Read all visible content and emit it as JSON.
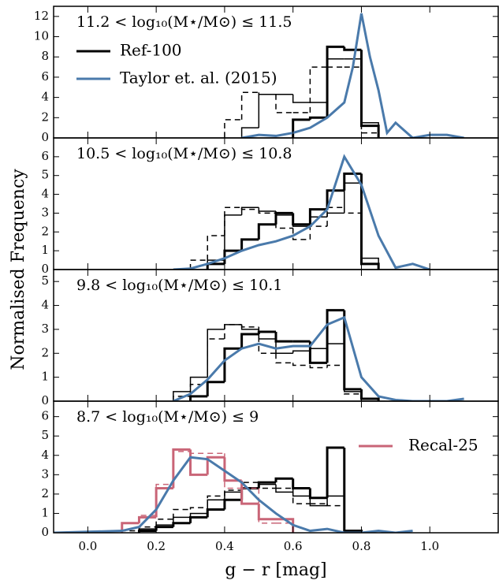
{
  "ylabel": "Normalised Frequency",
  "chart_data": [
    {
      "type": "histogram",
      "title": "11.2 < log₁₀(M⋆/M⊙) ≤ 11.5",
      "xlim": [
        -0.1,
        1.2
      ],
      "xticks": [
        {
          "value": 0,
          "label": "0.0"
        },
        0.2,
        0.4,
        0.6,
        0.8,
        {
          "value": 1,
          "label": "1.0"
        }
      ],
      "ylim": [
        0,
        13
      ],
      "yticks": [
        0,
        2,
        4,
        6,
        8,
        10,
        12
      ],
      "legend": "upper left",
      "series": [
        {
          "name": "Ref-100",
          "type": "step",
          "color": "#000000",
          "linewidth": 3,
          "dashed": false,
          "bins": [
            0.6,
            0.65,
            0.7,
            0.75,
            0.8,
            0.85
          ],
          "values": [
            1.8,
            2.0,
            9.0,
            8.7,
            1.2
          ]
        },
        {
          "type": "step",
          "color": "#000000",
          "linewidth": 1.5,
          "dashed": false,
          "bins": [
            0.45,
            0.5,
            0.55,
            0.6,
            0.65,
            0.7,
            0.75,
            0.8,
            0.85
          ],
          "values": [
            1.0,
            4.3,
            4.3,
            3.5,
            3.5,
            7.8,
            7.8,
            1.5
          ]
        },
        {
          "type": "step",
          "color": "#000000",
          "linewidth": 1.5,
          "dashed": true,
          "bins": [
            0.4,
            0.45,
            0.5,
            0.55,
            0.6,
            0.65,
            0.7,
            0.75,
            0.8,
            0.85
          ],
          "values": [
            1.8,
            4.5,
            4.3,
            2.5,
            2.5,
            7.0,
            7.0,
            7.0,
            0.5
          ]
        },
        {
          "name": "Taylor et. al. (2015)",
          "type": "line",
          "color": "#4a7aab",
          "linewidth": 3,
          "dashed": false,
          "x": [
            0.45,
            0.5,
            0.55,
            0.6,
            0.65,
            0.7,
            0.75,
            0.775,
            0.8,
            0.825,
            0.85,
            0.875,
            0.9,
            0.95,
            1.0,
            1.05,
            1.1
          ],
          "values": [
            0,
            0.3,
            0.2,
            0.5,
            1.0,
            2.0,
            3.5,
            7.0,
            12.3,
            8.0,
            4.7,
            0.5,
            1.5,
            0,
            0.3,
            0.3,
            0
          ]
        }
      ]
    },
    {
      "type": "histogram",
      "title": "10.5 < log₁₀(M⋆/M⊙) ≤ 10.8",
      "xlim": [
        -0.1,
        1.2
      ],
      "xticks": [
        {
          "value": 0,
          "label": "0.0"
        },
        0.2,
        0.4,
        0.6,
        0.8,
        {
          "value": 1,
          "label": "1.0"
        }
      ],
      "ylim": [
        0,
        7
      ],
      "yticks": [
        0,
        1,
        2,
        3,
        4,
        5,
        6
      ],
      "series": [
        {
          "type": "step",
          "color": "#000000",
          "linewidth": 3,
          "dashed": false,
          "bins": [
            0.35,
            0.4,
            0.45,
            0.5,
            0.55,
            0.6,
            0.65,
            0.7,
            0.75,
            0.8,
            0.85
          ],
          "values": [
            0.3,
            1.0,
            1.6,
            2.4,
            3.0,
            2.4,
            3.2,
            4.2,
            5.1,
            0.3
          ]
        },
        {
          "type": "step",
          "color": "#000000",
          "linewidth": 1.5,
          "dashed": false,
          "bins": [
            0.35,
            0.4,
            0.45,
            0.5,
            0.55,
            0.6,
            0.65,
            0.7,
            0.75,
            0.8,
            0.85
          ],
          "values": [
            0.5,
            2.9,
            3.3,
            3.1,
            2.9,
            2.3,
            2.8,
            3.0,
            4.6,
            0.6
          ]
        },
        {
          "type": "step",
          "color": "#000000",
          "linewidth": 1.5,
          "dashed": true,
          "bins": [
            0.3,
            0.35,
            0.4,
            0.45,
            0.5,
            0.55,
            0.6,
            0.65,
            0.7,
            0.75,
            0.8,
            0.85
          ],
          "values": [
            0.5,
            1.8,
            3.3,
            3.2,
            3.0,
            2.2,
            1.6,
            2.3,
            3.3,
            3.0,
            0.3
          ]
        },
        {
          "type": "line",
          "color": "#4a7aab",
          "linewidth": 3,
          "dashed": false,
          "x": [
            0.25,
            0.3,
            0.35,
            0.4,
            0.45,
            0.5,
            0.55,
            0.6,
            0.65,
            0.7,
            0.75,
            0.8,
            0.85,
            0.9,
            0.95,
            1.0
          ],
          "values": [
            0,
            0.05,
            0.3,
            0.6,
            1.0,
            1.3,
            1.5,
            1.8,
            2.3,
            3.2,
            6.0,
            4.5,
            1.8,
            0.1,
            0.3,
            0
          ]
        }
      ]
    },
    {
      "type": "histogram",
      "title": "9.8 < log₁₀(M⋆/M⊙) ≤ 10.1",
      "xlim": [
        -0.1,
        1.2
      ],
      "xticks": [
        {
          "value": 0,
          "label": "0.0"
        },
        0.2,
        0.4,
        0.6,
        0.8,
        {
          "value": 1,
          "label": "1.0"
        }
      ],
      "ylim": [
        0,
        5.5
      ],
      "yticks": [
        0,
        1,
        2,
        3,
        4,
        5
      ],
      "series": [
        {
          "type": "step",
          "color": "#000000",
          "linewidth": 3,
          "dashed": false,
          "bins": [
            0.3,
            0.35,
            0.4,
            0.45,
            0.5,
            0.55,
            0.6,
            0.65,
            0.7,
            0.75,
            0.8,
            0.85
          ],
          "values": [
            0.2,
            0.8,
            2.2,
            2.8,
            2.9,
            2.5,
            2.5,
            1.6,
            3.8,
            0.5,
            0.1
          ]
        },
        {
          "type": "step",
          "color": "#000000",
          "linewidth": 1.5,
          "dashed": false,
          "bins": [
            0.25,
            0.3,
            0.35,
            0.4,
            0.45,
            0.5,
            0.55,
            0.6,
            0.65,
            0.7,
            0.75,
            0.8,
            0.85
          ],
          "values": [
            0.4,
            1.0,
            3.0,
            3.2,
            3.0,
            2.6,
            2.0,
            2.1,
            2.2,
            2.4,
            0.4,
            0.1
          ]
        },
        {
          "type": "step",
          "color": "#000000",
          "linewidth": 1.5,
          "dashed": true,
          "bins": [
            0.25,
            0.3,
            0.35,
            0.4,
            0.45,
            0.5,
            0.55,
            0.6,
            0.65,
            0.7,
            0.75,
            0.8,
            0.85
          ],
          "values": [
            0.2,
            0.7,
            2.6,
            3.2,
            3.1,
            2.0,
            1.6,
            1.5,
            1.4,
            1.5,
            0.3,
            0.1
          ]
        },
        {
          "type": "line",
          "color": "#4a7aab",
          "linewidth": 3,
          "dashed": false,
          "x": [
            0.25,
            0.3,
            0.35,
            0.4,
            0.45,
            0.5,
            0.55,
            0.6,
            0.65,
            0.7,
            0.75,
            0.8,
            0.85,
            0.9,
            0.95,
            1.0,
            1.05,
            1.1
          ],
          "values": [
            0,
            0.3,
            0.9,
            1.7,
            2.2,
            2.4,
            2.2,
            2.3,
            2.3,
            3.2,
            3.5,
            1.0,
            0.2,
            0.05,
            0,
            0,
            0,
            0.1
          ]
        }
      ]
    },
    {
      "type": "histogram",
      "title": "8.7 < log₁₀(M⋆/M⊙) ≤ 9",
      "xlabel": "g − r [mag]",
      "xlim": [
        -0.1,
        1.2
      ],
      "xticks": [
        {
          "value": 0,
          "label": "0.0"
        },
        0.2,
        0.4,
        0.6,
        0.8,
        {
          "value": 1,
          "label": "1.0"
        }
      ],
      "ylim": [
        0,
        6.8
      ],
      "yticks": [
        0,
        1,
        2,
        3,
        4,
        5,
        6
      ],
      "legend": "upper right",
      "series": [
        {
          "type": "step",
          "color": "#000000",
          "linewidth": 3,
          "dashed": false,
          "bins": [
            0.15,
            0.2,
            0.25,
            0.3,
            0.35,
            0.4,
            0.45,
            0.5,
            0.55,
            0.6,
            0.65,
            0.7,
            0.75,
            0.8
          ],
          "values": [
            0.1,
            0.3,
            0.5,
            0.8,
            1.2,
            1.7,
            2.3,
            2.6,
            2.8,
            2.3,
            1.8,
            4.4,
            0.1
          ]
        },
        {
          "type": "step",
          "color": "#000000",
          "linewidth": 1.5,
          "dashed": false,
          "bins": [
            0.15,
            0.2,
            0.25,
            0.3,
            0.35,
            0.4,
            0.45,
            0.5,
            0.55,
            0.6,
            0.65,
            0.7,
            0.75,
            0.8
          ],
          "values": [
            0.2,
            0.4,
            0.8,
            1.0,
            1.7,
            2.1,
            2.3,
            2.5,
            2.1,
            1.9,
            1.4,
            1.9,
            0.1
          ]
        },
        {
          "type": "step",
          "color": "#000000",
          "linewidth": 1.5,
          "dashed": true,
          "bins": [
            0.1,
            0.15,
            0.2,
            0.25,
            0.3,
            0.35,
            0.4,
            0.45,
            0.5,
            0.55,
            0.6,
            0.65,
            0.7,
            0.75,
            0.8
          ],
          "values": [
            0.1,
            0.3,
            0.7,
            1.2,
            1.3,
            1.9,
            2.2,
            2.6,
            2.3,
            2.3,
            1.5,
            1.5,
            1.4,
            0.1
          ]
        },
        {
          "name": "Recal-25",
          "type": "step",
          "color": "#c96577",
          "linewidth": 3,
          "dashed": false,
          "bins": [
            0.1,
            0.15,
            0.2,
            0.25,
            0.3,
            0.35,
            0.4,
            0.45,
            0.5,
            0.55,
            0.6
          ],
          "values": [
            0.5,
            0.8,
            2.3,
            4.3,
            3.0,
            3.9,
            2.7,
            1.5,
            0.7,
            0.7
          ]
        },
        {
          "type": "step",
          "color": "#c96577",
          "linewidth": 1.5,
          "dashed": true,
          "bins": [
            0.1,
            0.15,
            0.2,
            0.25,
            0.3,
            0.35,
            0.4,
            0.45,
            0.5,
            0.55,
            0.6
          ],
          "values": [
            0.5,
            0.9,
            2.5,
            4.2,
            4.1,
            4.1,
            2.3,
            2.3,
            0.5,
            0.5
          ]
        },
        {
          "type": "line",
          "color": "#4a7aab",
          "linewidth": 3,
          "dashed": false,
          "x": [
            -0.1,
            0.1,
            0.15,
            0.2,
            0.25,
            0.3,
            0.35,
            0.4,
            0.45,
            0.5,
            0.55,
            0.6,
            0.65,
            0.7,
            0.75,
            0.8,
            0.85,
            0.9,
            0.95
          ],
          "values": [
            0,
            0.1,
            0.3,
            1.2,
            2.7,
            3.9,
            3.8,
            3.2,
            2.6,
            1.7,
            1.0,
            0.4,
            0.1,
            0.2,
            0,
            0,
            0.1,
            0,
            0.1
          ]
        }
      ]
    }
  ]
}
